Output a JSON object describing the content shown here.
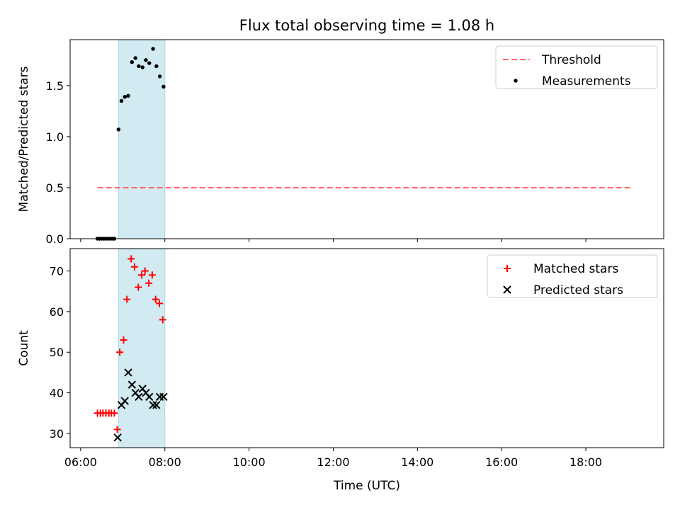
{
  "figure": {
    "title": "Flux total observing time = 1.08 h",
    "xlabel": "Time (UTC)"
  },
  "colors": {
    "highlight": "#add8e6",
    "threshold": "#ff6666",
    "measurements": "#000000",
    "matched": "#ff0000",
    "predicted": "#000000"
  },
  "chart_data": [
    {
      "type": "scatter",
      "ylabel": "Matched/Predicted stars",
      "xlim": [
        5.75,
        19.85
      ],
      "ylim": [
        0,
        1.95
      ],
      "yticks": [
        0.0,
        0.5,
        1.0,
        1.5
      ],
      "ytick_labels": [
        "0.0",
        "0.5",
        "1.0",
        "1.5"
      ],
      "shaded_span": [
        6.9,
        8.0
      ],
      "legend_position": "upper right",
      "threshold": {
        "name": "Threshold",
        "y": 0.5,
        "x": [
          6.4,
          19.1
        ]
      },
      "series": [
        {
          "name": "Measurements",
          "marker": "dot",
          "x": [
            6.9,
            6.97,
            7.05,
            7.13,
            7.22,
            7.3,
            7.38,
            7.47,
            7.55,
            7.63,
            7.72,
            7.8,
            7.88,
            7.97,
            6.4,
            6.45,
            6.5,
            6.55,
            6.6,
            6.65,
            6.7,
            6.75,
            6.8
          ],
          "y": [
            1.07,
            1.35,
            1.39,
            1.4,
            1.73,
            1.77,
            1.69,
            1.68,
            1.75,
            1.72,
            1.86,
            1.69,
            1.59,
            1.49,
            0,
            0,
            0,
            0,
            0,
            0,
            0,
            0,
            0
          ]
        }
      ]
    },
    {
      "type": "scatter",
      "ylabel": "Count",
      "xlim": [
        5.75,
        19.85
      ],
      "ylim": [
        26.5,
        75.5
      ],
      "yticks": [
        30,
        40,
        50,
        60,
        70
      ],
      "ytick_labels": [
        "30",
        "40",
        "50",
        "60",
        "70"
      ],
      "shaded_span": [
        6.9,
        8.0
      ],
      "legend_position": "upper right",
      "xticks": [
        6,
        8,
        10,
        12,
        14,
        16,
        18
      ],
      "xtick_labels": [
        "06:00",
        "08:00",
        "10:00",
        "12:00",
        "14:00",
        "16:00",
        "18:00"
      ],
      "series": [
        {
          "name": "Matched stars",
          "marker": "plus",
          "x": [
            6.4,
            6.47,
            6.53,
            6.6,
            6.67,
            6.73,
            6.8,
            6.87,
            6.93,
            7.02,
            7.1,
            7.2,
            7.28,
            7.37,
            7.45,
            7.53,
            7.62,
            7.7,
            7.78,
            7.87,
            7.95
          ],
          "y": [
            35,
            35,
            35,
            35,
            35,
            35,
            35,
            31,
            50,
            53,
            63,
            73,
            71,
            66,
            69,
            70,
            67,
            69,
            63,
            62,
            58
          ]
        },
        {
          "name": "Predicted stars",
          "marker": "x",
          "x": [
            6.88,
            6.97,
            7.05,
            7.13,
            7.22,
            7.3,
            7.38,
            7.47,
            7.55,
            7.63,
            7.72,
            7.8,
            7.88,
            7.97
          ],
          "y": [
            29,
            37,
            38,
            45,
            42,
            40,
            39,
            41,
            40,
            39,
            37,
            37,
            39,
            39
          ]
        }
      ]
    }
  ]
}
